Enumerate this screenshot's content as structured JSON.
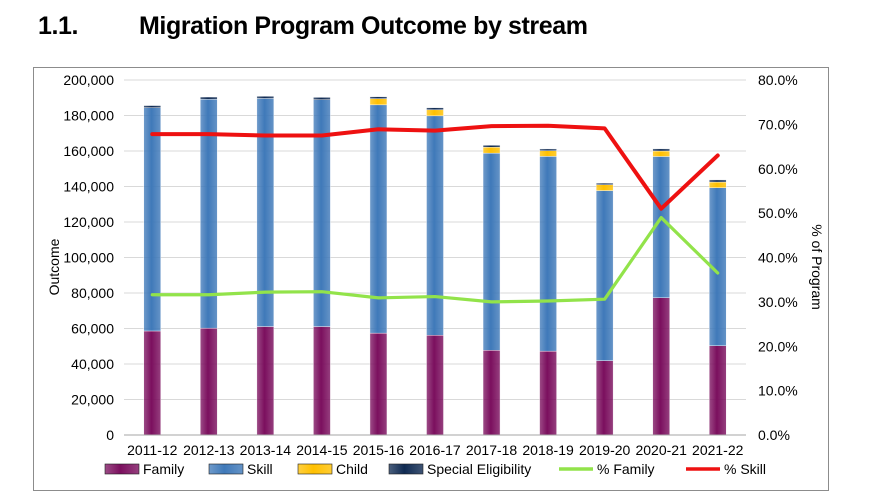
{
  "heading": {
    "number": "1.1.",
    "title": "Migration Program Outcome by stream"
  },
  "chart_data": {
    "type": "bar",
    "stacked": true,
    "categories": [
      "2011-12",
      "2012-13",
      "2013-14",
      "2014-15",
      "2015-16",
      "2016-17",
      "2017-18",
      "2018-19",
      "2019-20",
      "2020-21",
      "2021-22"
    ],
    "series": [
      {
        "name": "Family",
        "axis": "left",
        "color": "#7b0f5e",
        "values": [
          58600,
          60200,
          61100,
          61100,
          57400,
          56200,
          47700,
          47250,
          41900,
          77300,
          50300
        ]
      },
      {
        "name": "Skill",
        "axis": "left",
        "color": "#3f79b9",
        "values": [
          125800,
          128900,
          128500,
          127800,
          128600,
          123600,
          111100,
          109700,
          95800,
          79600,
          89000
        ]
      },
      {
        "name": "Child",
        "axis": "left",
        "color": "#ffc000",
        "values": [
          0,
          0,
          0,
          0,
          3500,
          3400,
          3300,
          3200,
          3300,
          3100,
          3200
        ]
      },
      {
        "name": "Special Eligibility",
        "axis": "left",
        "color": "#0f2a52",
        "values": [
          1200,
          1300,
          1200,
          1300,
          1100,
          1200,
          1100,
          1000,
          900,
          1200,
          1200
        ]
      },
      {
        "name": "% Family",
        "type": "line",
        "axis": "right",
        "color": "#92e34a",
        "values": [
          31.6,
          31.6,
          32.2,
          32.3,
          30.9,
          31.2,
          30.0,
          30.2,
          30.6,
          49.0,
          36.5
        ]
      },
      {
        "name": "% Skill",
        "type": "line",
        "axis": "right",
        "color": "#ee1111",
        "values": [
          67.8,
          67.8,
          67.5,
          67.5,
          68.9,
          68.6,
          69.6,
          69.7,
          69.1,
          51.0,
          63.0
        ]
      }
    ],
    "yticks_left": [
      "0",
      "20,000",
      "40,000",
      "60,000",
      "80,000",
      "100,000",
      "120,000",
      "140,000",
      "160,000",
      "180,000",
      "200,000"
    ],
    "yticks_right": [
      "0.0%",
      "10.0%",
      "20.0%",
      "30.0%",
      "40.0%",
      "50.0%",
      "60.0%",
      "70.0%",
      "80.0%"
    ],
    "ylim_left": [
      0,
      200000
    ],
    "ylim_right": [
      0,
      80
    ],
    "ylabel_left": "Outcome",
    "ylabel_right": "% of Program",
    "gridlines": true,
    "legend_position": "bottom"
  }
}
